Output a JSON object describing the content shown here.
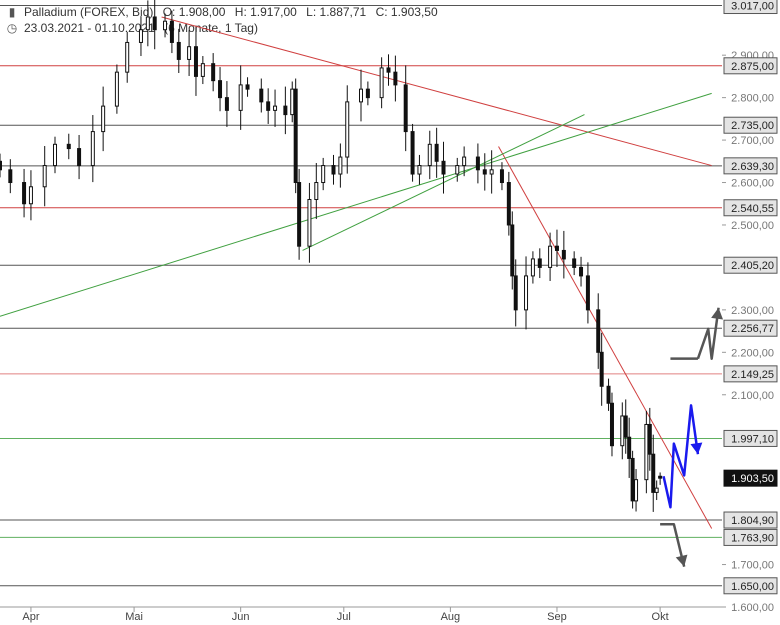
{
  "header": {
    "instrument": "Palladium (FOREX, Bid)",
    "open": "O: 1.908,00",
    "high": "H: 1.917,00",
    "low": "L: 1.887,71",
    "close": "C: 1.903,50",
    "date_range": "23.03.2021 - 01.10.2021",
    "period": "(6 Monate, 1 Tag)",
    "icons": [
      "candlestick-icon",
      "clock-icon"
    ]
  },
  "chart_data": {
    "type": "candlestick",
    "instrument": "Palladium (FOREX, Bid)",
    "ylim": [
      1600,
      3030
    ],
    "y_ticks": [
      {
        "value": 2900,
        "label": "2.900,00"
      },
      {
        "value": 2800,
        "label": "2.800,00"
      },
      {
        "value": 2700,
        "label": "2.700,00"
      },
      {
        "value": 2600,
        "label": "2.600,00"
      },
      {
        "value": 2500,
        "label": "2.500,00"
      },
      {
        "value": 2300,
        "label": "2.300,00"
      },
      {
        "value": 2200,
        "label": "2.200,00"
      },
      {
        "value": 2100,
        "label": "2.100,00"
      },
      {
        "value": 1700,
        "label": "1.700,00"
      },
      {
        "value": 1600,
        "label": "1.600,00"
      }
    ],
    "x_ticks": [
      {
        "date": "2021-04-01",
        "label": "Apr"
      },
      {
        "date": "2021-05-01",
        "label": "Mai"
      },
      {
        "date": "2021-06-01",
        "label": "Jun"
      },
      {
        "date": "2021-07-01",
        "label": "Jul"
      },
      {
        "date": "2021-08-01",
        "label": "Aug"
      },
      {
        "date": "2021-09-01",
        "label": "Sep"
      },
      {
        "date": "2021-10-01",
        "label": "Okt"
      }
    ],
    "horizontal_levels": [
      {
        "value": 3017.0,
        "label": "3.017,00",
        "color": "#555555"
      },
      {
        "value": 2875.0,
        "label": "2.875,00",
        "color": "#d04040"
      },
      {
        "value": 2735.0,
        "label": "2.735,00",
        "color": "#555555"
      },
      {
        "value": 2639.3,
        "label": "2.639,30",
        "color": "#555555"
      },
      {
        "value": 2540.55,
        "label": "2.540,55",
        "color": "#d04040"
      },
      {
        "value": 2405.2,
        "label": "2.405,20",
        "color": "#555555"
      },
      {
        "value": 2256.77,
        "label": "2.256,77",
        "color": "#555555"
      },
      {
        "value": 2149.25,
        "label": "2.149,25",
        "color": "#e08080"
      },
      {
        "value": 1997.1,
        "label": "1.997,10",
        "color": "#60b060"
      },
      {
        "value": 1804.9,
        "label": "1.804,90",
        "color": "#555555"
      },
      {
        "value": 1763.9,
        "label": "1.763,90",
        "color": "#60b060"
      },
      {
        "value": 1650.0,
        "label": "1.650,00",
        "color": "#555555"
      }
    ],
    "last_price": {
      "value": 1903.5,
      "label": "1.903,50"
    },
    "trend_lines": [
      {
        "color": "#d04040",
        "from": {
          "date": "2021-05-09",
          "value": 2990
        },
        "to": {
          "date": "2021-10-16",
          "value": 2640
        }
      },
      {
        "color": "#d04040",
        "from": {
          "date": "2021-08-15",
          "value": 2685
        },
        "to": {
          "date": "2021-10-16",
          "value": 1785
        }
      },
      {
        "color": "#40a040",
        "from": {
          "date": "2021-03-23",
          "value": 2285
        },
        "to": {
          "date": "2021-10-16",
          "value": 2810
        }
      },
      {
        "color": "#40a040",
        "from": {
          "date": "2021-06-19",
          "value": 2440
        },
        "to": {
          "date": "2021-09-09",
          "value": 2760
        }
      }
    ],
    "scenario_arrows": [
      {
        "color": "#555555",
        "points": [
          {
            "date": "2021-10-12",
            "value": 2185
          },
          {
            "date": "2021-10-04",
            "value": 2185
          }
        ]
      },
      {
        "color": "#1a1aee",
        "points": [
          {
            "date": "2021-10-02",
            "value": 1908
          },
          {
            "date": "2021-10-04",
            "value": 1835
          },
          {
            "date": "2021-10-05",
            "value": 1985
          },
          {
            "date": "2021-10-08",
            "value": 1910
          },
          {
            "date": "2021-10-10",
            "value": 2075
          },
          {
            "date": "2021-10-12",
            "value": 1960
          }
        ]
      },
      {
        "color": "#555555",
        "points": [
          {
            "date": "2021-10-12",
            "value": 2185
          },
          {
            "date": "2021-10-15",
            "value": 2255
          },
          {
            "date": "2021-10-16",
            "value": 2185
          },
          {
            "date": "2021-10-18",
            "value": 2305
          }
        ]
      },
      {
        "color": "#555555",
        "points": [
          {
            "date": "2021-10-01",
            "value": 1795
          },
          {
            "date": "2021-10-05",
            "value": 1795
          },
          {
            "date": "2021-10-08",
            "value": 1695
          }
        ]
      }
    ],
    "close_series": [
      [
        "2021-03-23",
        2630
      ],
      [
        "2021-03-26",
        2600
      ],
      [
        "2021-03-30",
        2550
      ],
      [
        "2021-04-01",
        2590
      ],
      [
        "2021-04-05",
        2640
      ],
      [
        "2021-04-08",
        2690
      ],
      [
        "2021-04-12",
        2680
      ],
      [
        "2021-04-15",
        2640
      ],
      [
        "2021-04-19",
        2720
      ],
      [
        "2021-04-22",
        2780
      ],
      [
        "2021-04-26",
        2860
      ],
      [
        "2021-04-29",
        2930
      ],
      [
        "2021-05-03",
        2960
      ],
      [
        "2021-05-05",
        2990
      ],
      [
        "2021-05-07",
        2960
      ],
      [
        "2021-05-10",
        2980
      ],
      [
        "2021-05-12",
        2930
      ],
      [
        "2021-05-14",
        2890
      ],
      [
        "2021-05-17",
        2920
      ],
      [
        "2021-05-19",
        2850
      ],
      [
        "2021-05-21",
        2880
      ],
      [
        "2021-05-24",
        2840
      ],
      [
        "2021-05-26",
        2800
      ],
      [
        "2021-05-28",
        2770
      ],
      [
        "2021-06-01",
        2830
      ],
      [
        "2021-06-03",
        2820
      ],
      [
        "2021-06-07",
        2790
      ],
      [
        "2021-06-09",
        2770
      ],
      [
        "2021-06-11",
        2780
      ],
      [
        "2021-06-14",
        2760
      ],
      [
        "2021-06-16",
        2820
      ],
      [
        "2021-06-17",
        2600
      ],
      [
        "2021-06-18",
        2450
      ],
      [
        "2021-06-21",
        2560
      ],
      [
        "2021-06-23",
        2600
      ],
      [
        "2021-06-25",
        2640
      ],
      [
        "2021-06-28",
        2620
      ],
      [
        "2021-06-30",
        2660
      ],
      [
        "2021-07-02",
        2790
      ],
      [
        "2021-07-06",
        2820
      ],
      [
        "2021-07-08",
        2800
      ],
      [
        "2021-07-12",
        2870
      ],
      [
        "2021-07-14",
        2860
      ],
      [
        "2021-07-16",
        2830
      ],
      [
        "2021-07-19",
        2720
      ],
      [
        "2021-07-21",
        2620
      ],
      [
        "2021-07-23",
        2640
      ],
      [
        "2021-07-26",
        2690
      ],
      [
        "2021-07-28",
        2650
      ],
      [
        "2021-07-30",
        2620
      ],
      [
        "2021-08-03",
        2640
      ],
      [
        "2021-08-05",
        2660
      ],
      [
        "2021-08-09",
        2630
      ],
      [
        "2021-08-11",
        2620
      ],
      [
        "2021-08-13",
        2630
      ],
      [
        "2021-08-16",
        2600
      ],
      [
        "2021-08-18",
        2500
      ],
      [
        "2021-08-19",
        2380
      ],
      [
        "2021-08-20",
        2300
      ],
      [
        "2021-08-23",
        2380
      ],
      [
        "2021-08-25",
        2420
      ],
      [
        "2021-08-27",
        2400
      ],
      [
        "2021-08-30",
        2450
      ],
      [
        "2021-09-01",
        2440
      ],
      [
        "2021-09-03",
        2420
      ],
      [
        "2021-09-06",
        2400
      ],
      [
        "2021-09-08",
        2380
      ],
      [
        "2021-09-10",
        2300
      ],
      [
        "2021-09-13",
        2200
      ],
      [
        "2021-09-14",
        2120
      ],
      [
        "2021-09-16",
        2080
      ],
      [
        "2021-09-17",
        1980
      ],
      [
        "2021-09-20",
        2050
      ],
      [
        "2021-09-21",
        2000
      ],
      [
        "2021-09-22",
        1950
      ],
      [
        "2021-09-23",
        1850
      ],
      [
        "2021-09-24",
        1900
      ],
      [
        "2021-09-27",
        2030
      ],
      [
        "2021-09-28",
        1960
      ],
      [
        "2021-09-29",
        1870
      ],
      [
        "2021-09-30",
        1880
      ],
      [
        "2021-10-01",
        1903.5
      ]
    ],
    "last_candle": {
      "date": "2021-10-01",
      "open": 1908.0,
      "high": 1917.0,
      "low": 1887.71,
      "close": 1903.5
    },
    "grid": false,
    "legend": "none"
  }
}
